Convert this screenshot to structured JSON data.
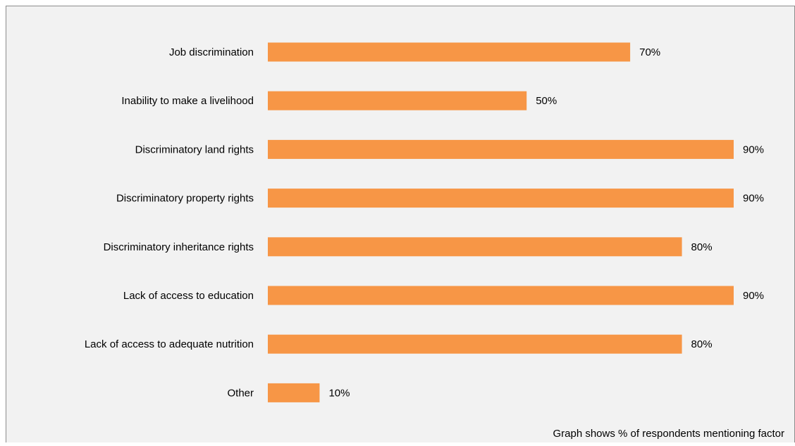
{
  "chart_data": {
    "type": "bar",
    "orientation": "horizontal",
    "categories": [
      "Job discrimination",
      "Inability to make a livelihood",
      "Discriminatory land rights",
      "Discriminatory property rights",
      "Discriminatory inheritance rights",
      "Lack of access to education",
      "Lack of access to adequate nutrition",
      "Other"
    ],
    "values": [
      70,
      50,
      90,
      90,
      80,
      90,
      80,
      10
    ],
    "data_labels": [
      "70%",
      "50%",
      "90%",
      "90%",
      "80%",
      "90%",
      "80%",
      "10%"
    ],
    "unit": "%",
    "xlim": [
      0,
      90
    ],
    "grid": false,
    "legend": "none",
    "bar_color": "#F79646",
    "background_color": "#F2F2F2",
    "footnote": "Graph shows % of respondents mentioning factor"
  }
}
